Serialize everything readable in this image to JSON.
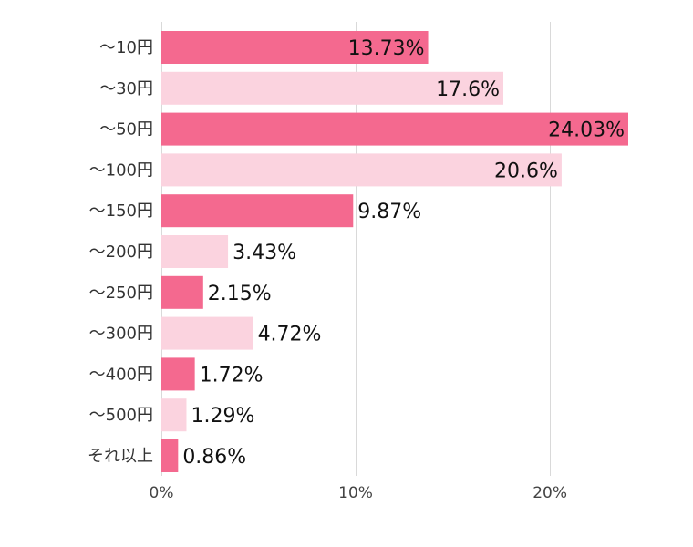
{
  "chart_data": {
    "type": "bar",
    "orientation": "horizontal",
    "categories": [
      "～10円",
      "～30円",
      "～50円",
      "～100円",
      "～150円",
      "～200円",
      "～250円",
      "～300円",
      "～400円",
      "～500円",
      "それ以上"
    ],
    "values": [
      13.73,
      17.6,
      24.03,
      20.6,
      9.87,
      3.43,
      2.15,
      4.72,
      1.72,
      1.29,
      0.86
    ],
    "value_labels": [
      "13.73%",
      "17.6%",
      "24.03%",
      "20.6%",
      "9.87%",
      "3.43%",
      "2.15%",
      "4.72%",
      "1.72%",
      "1.29%",
      "0.86%"
    ],
    "xlim": [
      0,
      24.03
    ],
    "x_ticks": [
      0,
      10,
      20
    ],
    "x_tick_labels": [
      "0%",
      "10%",
      "20%"
    ],
    "grid": true,
    "legend": "none",
    "colors": {
      "primary": "#f4698f",
      "secondary": "#fbd3df",
      "grid": "#d9d9d9"
    },
    "bar_color_pattern": [
      "primary",
      "secondary"
    ]
  }
}
